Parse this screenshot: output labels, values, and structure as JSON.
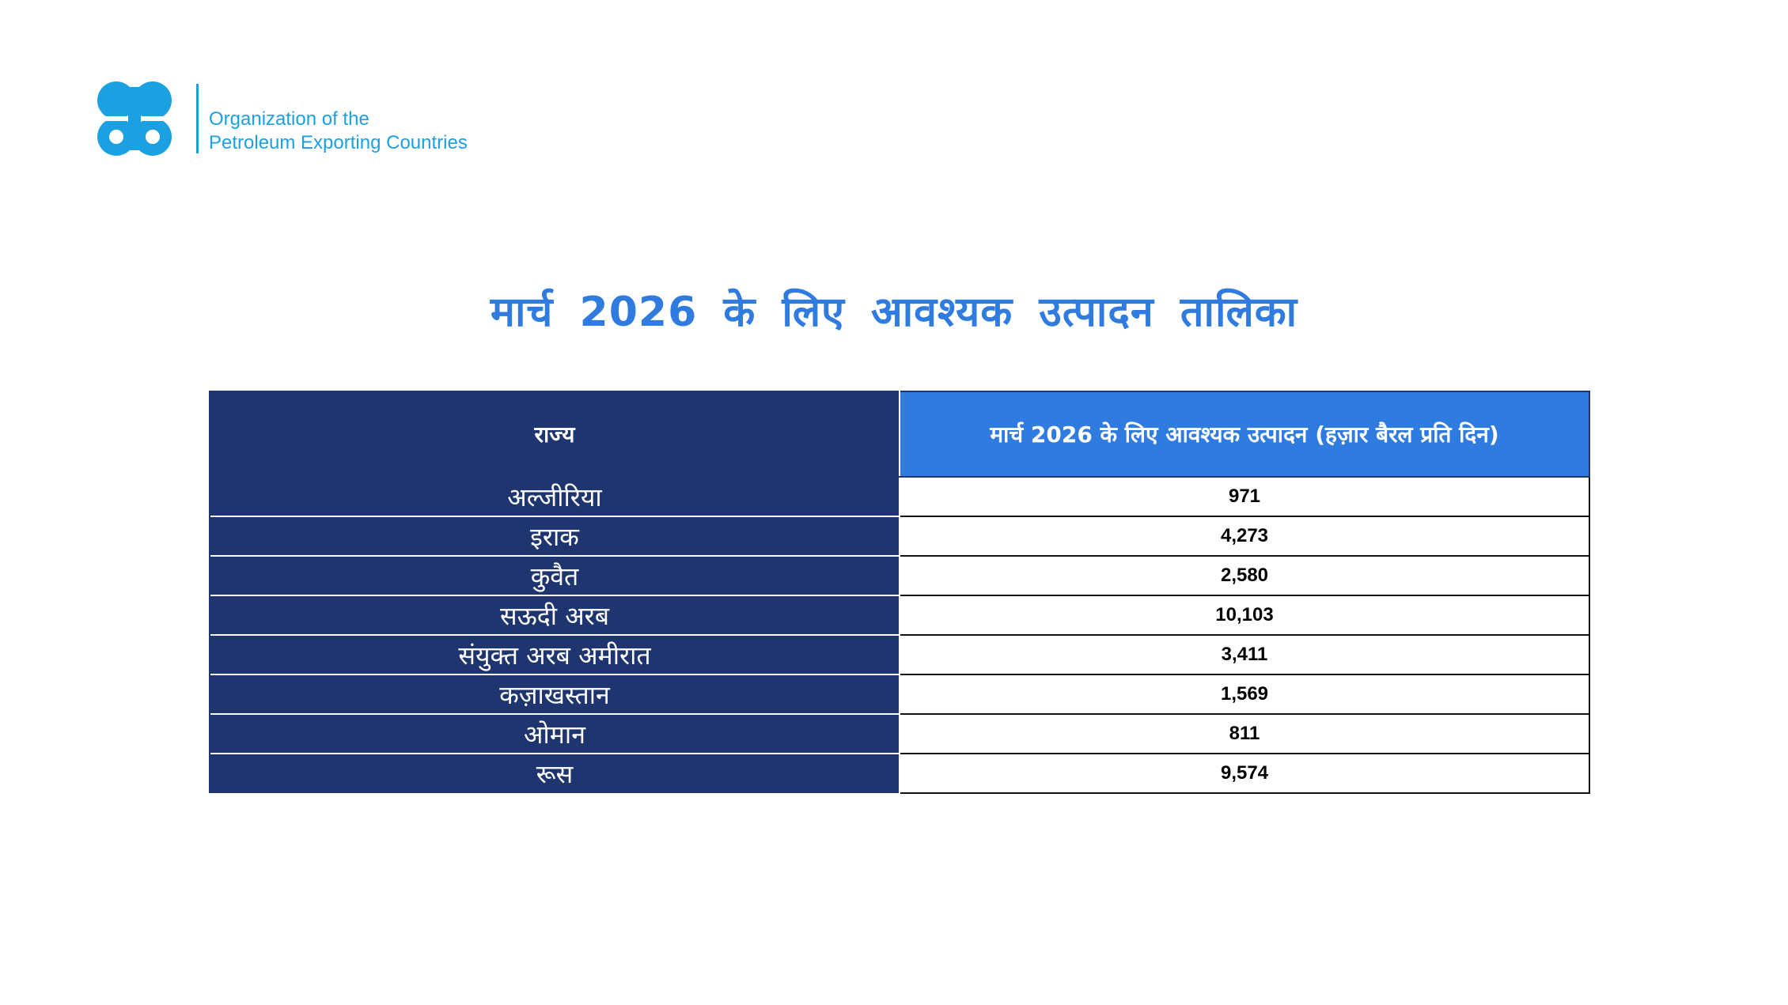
{
  "header": {
    "logo_line1": "Organization of the",
    "logo_line2": "Petroleum Exporting Countries",
    "brand_color": "#1ba0e2"
  },
  "page_title": "मार्च 2026 के लिए आवश्यक उत्पादन तालिका",
  "table": {
    "columns": [
      "राज्य",
      "मार्च 2026 के लिए आवश्यक उत्पादन (हज़ार बैरल प्रति दिन)"
    ],
    "rows": [
      {
        "state": "अल्जीरिया",
        "value": "971"
      },
      {
        "state": "इराक",
        "value": "4,273"
      },
      {
        "state": "कुवैत",
        "value": "2,580"
      },
      {
        "state": "सऊदी अरब",
        "value": "10,103"
      },
      {
        "state": "संयुक्त अरब अमीरात",
        "value": "3,411"
      },
      {
        "state": "कज़ाखस्तान",
        "value": "1,569"
      },
      {
        "state": "ओमान",
        "value": "811"
      },
      {
        "state": "रूस",
        "value": "9,574"
      }
    ]
  },
  "colors": {
    "title": "#2f7be0",
    "state_column": "#1f3570",
    "production_header": "#2f7be0"
  }
}
